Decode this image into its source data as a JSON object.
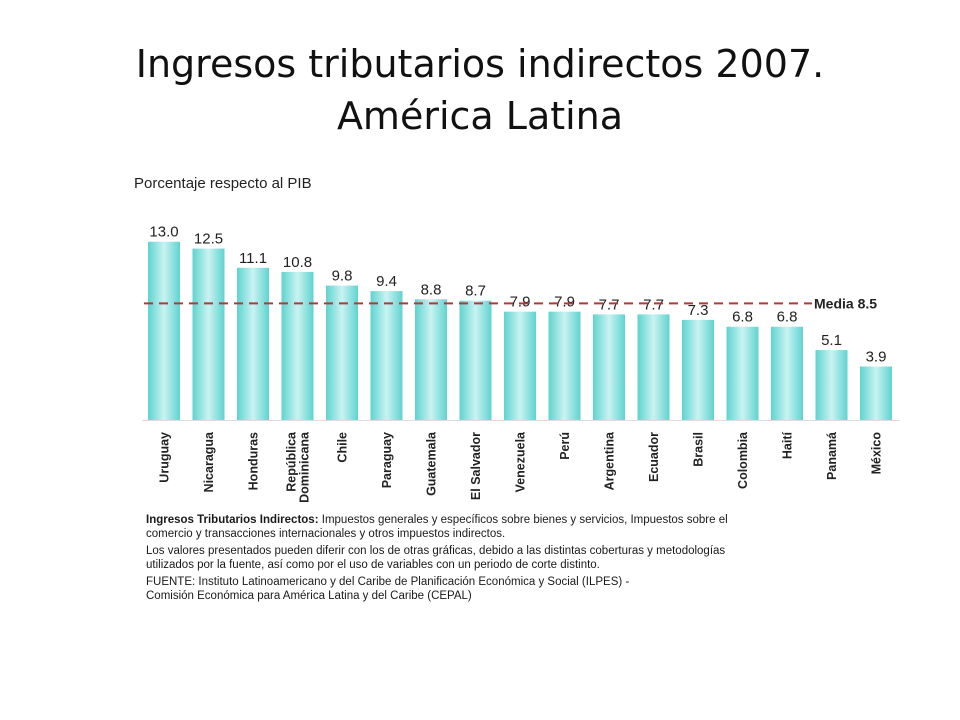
{
  "slide": {
    "title_line1": "Ingresos tributarios indirectos 2007.",
    "title_line2": "América Latina"
  },
  "figure": {
    "heading": "Porcentaje respecto al PIB",
    "notes": {
      "definition_term": "Ingresos Tributarios Indirectos:",
      "definition_line1": "Impuestos generales y específicos sobre bienes y servicios, Impuestos sobre el",
      "definition_line2": "comercio y transacciones internacionales y otros impuestos indirectos.",
      "disclaimer_line1": "Los valores presentados pueden diferir con los de otras gráficas, debido a las distintas coberturas y metodologías",
      "disclaimer_line2": "utilizados por la fuente, así como por el uso de variables con un periodo de corte distinto.",
      "source_line1": "FUENTE: Instituto Latinoamericano y del Caribe de Planificación Económica y Social (ILPES) -",
      "source_line2": "Comisión Económica para América Latina y del Caribe (CEPAL)"
    }
  },
  "chart_data": {
    "type": "bar",
    "title": "Ingresos tributarios indirectos 2007. América Latina",
    "ylabel": "Porcentaje respecto al PIB",
    "xlabel": "",
    "categories": [
      "Uruguay",
      "Nicaragua",
      "Honduras",
      "República Dominicana",
      "Chile",
      "Paraguay",
      "Guatemala",
      "El Salvador",
      "Venezuela",
      "Perú",
      "Argentina",
      "Ecuador",
      "Brasil",
      "Colombia",
      "Haití",
      "Panamá",
      "México"
    ],
    "category_label_lines": [
      [
        "Uruguay"
      ],
      [
        "Nicaragua"
      ],
      [
        "Honduras"
      ],
      [
        "República",
        "Dominicana"
      ],
      [
        "Chile"
      ],
      [
        "Paraguay"
      ],
      [
        "Guatemala"
      ],
      [
        "El Salvador"
      ],
      [
        "Venezuela"
      ],
      [
        "Perú"
      ],
      [
        "Argentina"
      ],
      [
        "Ecuador"
      ],
      [
        "Brasil"
      ],
      [
        "Colombia"
      ],
      [
        "Haití"
      ],
      [
        "Panamá"
      ],
      [
        "México"
      ]
    ],
    "values": [
      13.0,
      12.5,
      11.1,
      10.8,
      9.8,
      9.4,
      8.8,
      8.7,
      7.9,
      7.9,
      7.7,
      7.7,
      7.3,
      6.8,
      6.8,
      5.1,
      3.9
    ],
    "value_labels": [
      "13.0",
      "12.5",
      "11.1",
      "10.8",
      "9.8",
      "9.4",
      "8.8",
      "8.7",
      "7.9",
      "7.9",
      "7.7",
      "7.7",
      "7.3",
      "6.8",
      "6.8",
      "5.1",
      "3.9"
    ],
    "reference_line": {
      "value": 8.5,
      "label": "Media 8.5"
    },
    "ylim": [
      0,
      14
    ],
    "grid": false,
    "legend": "none",
    "bar_color": "#5fd3d0",
    "bar_highlight_color": "#c9f3f1",
    "reference_color": "#b03a3a"
  }
}
